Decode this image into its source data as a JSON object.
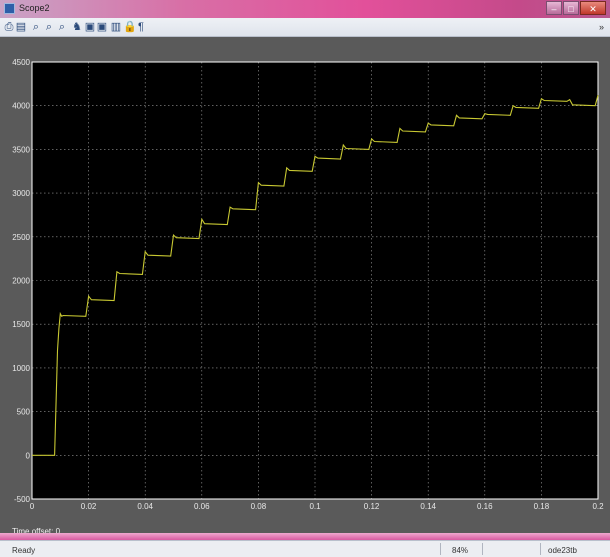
{
  "window": {
    "title": "Scope2"
  },
  "title_buttons": {
    "minimize": "–",
    "maximize": "□",
    "close": "✕"
  },
  "toolbar": {
    "tools": [
      {
        "name": "print-icon",
        "glyph": "⎙"
      },
      {
        "name": "parameters-icon",
        "glyph": "▤"
      },
      {
        "name": "zoom-icon",
        "glyph": "⌕"
      },
      {
        "name": "zoom-x-icon",
        "glyph": "⌕"
      },
      {
        "name": "zoom-y-icon",
        "glyph": "⌕"
      },
      {
        "name": "autoscale-icon",
        "glyph": "♞"
      },
      {
        "name": "save-axes-icon",
        "glyph": "▣"
      },
      {
        "name": "restore-axes-icon",
        "glyph": "▣"
      },
      {
        "name": "floating-scope-icon",
        "glyph": "▥"
      },
      {
        "name": "lock-icon",
        "glyph": "🔒"
      },
      {
        "name": "signal-selection-icon",
        "glyph": "¶"
      }
    ],
    "overflow_glyph": "»"
  },
  "chart_data": {
    "type": "line",
    "title": "",
    "xlabel": "",
    "ylabel": "",
    "xlim": [
      0,
      0.2
    ],
    "ylim": [
      -500,
      4500
    ],
    "x_ticks": [
      0,
      0.02,
      0.04,
      0.06,
      0.08,
      0.1,
      0.12,
      0.14,
      0.16,
      0.18,
      0.2
    ],
    "x_tick_labels": [
      "0",
      "0.02",
      "0.04",
      "0.06",
      "0.08",
      "0.1",
      "0.12",
      "0.14",
      "0.16",
      "0.18",
      "0.2"
    ],
    "y_ticks": [
      -500,
      0,
      500,
      1000,
      1500,
      2000,
      2500,
      3000,
      3500,
      4000,
      4500
    ],
    "y_tick_labels": [
      "-500",
      "0",
      "500",
      "1000",
      "1500",
      "2000",
      "2500",
      "3000",
      "3500",
      "4000",
      "4500"
    ],
    "grid": true,
    "background": "#000000",
    "axes_color": "#ffffff",
    "line_color": "#c8c832",
    "series": [
      {
        "x": [
          0,
          0.008,
          0.009,
          0.0095,
          0.01,
          0.0105,
          0.011,
          0.019,
          0.02,
          0.021,
          0.029,
          0.03,
          0.031,
          0.039,
          0.04,
          0.041,
          0.049,
          0.05,
          0.051,
          0.059,
          0.06,
          0.061,
          0.069,
          0.07,
          0.071,
          0.079,
          0.08,
          0.081,
          0.089,
          0.09,
          0.091,
          0.099,
          0.1,
          0.101,
          0.109,
          0.11,
          0.111,
          0.119,
          0.12,
          0.121,
          0.129,
          0.13,
          0.131,
          0.139,
          0.14,
          0.141,
          0.149,
          0.15,
          0.151,
          0.159,
          0.16,
          0.161,
          0.169,
          0.17,
          0.171,
          0.179,
          0.18,
          0.181,
          0.189,
          0.19,
          0.191,
          0.199,
          0.2
        ],
        "y": [
          0,
          0,
          1200,
          1450,
          1620,
          1590,
          1600,
          1590,
          1820,
          1780,
          1770,
          2100,
          2080,
          2070,
          2330,
          2290,
          2280,
          2520,
          2490,
          2480,
          2700,
          2650,
          2640,
          2840,
          2820,
          2810,
          3120,
          3090,
          3080,
          3290,
          3260,
          3250,
          3420,
          3400,
          3390,
          3550,
          3510,
          3500,
          3620,
          3590,
          3580,
          3740,
          3710,
          3700,
          3800,
          3780,
          3770,
          3890,
          3860,
          3850,
          3910,
          3900,
          3890,
          4000,
          3980,
          3970,
          4080,
          4060,
          4050,
          4070,
          4010,
          4000,
          4120
        ]
      }
    ]
  },
  "timeoffset": {
    "label": "Time offset:  0"
  },
  "status": {
    "ready": "Ready",
    "zoom": "84%",
    "solver": "ode23tb"
  }
}
